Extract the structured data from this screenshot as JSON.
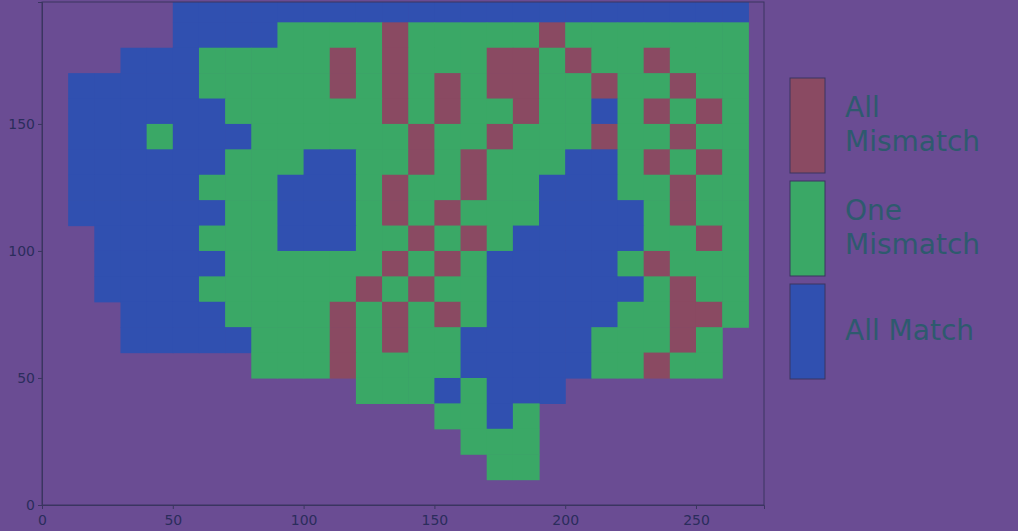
{
  "chart_data": {
    "type": "heatmap",
    "categories": [
      "All Mismatch",
      "One Mismatch",
      "All Match"
    ],
    "colors": [
      "#8a4a62",
      "#3aa866",
      "#3050b0"
    ],
    "legend": "right",
    "xlim": [
      0,
      276
    ],
    "ylim": [
      0,
      198
    ],
    "xticks": [
      0,
      50,
      100,
      150,
      200,
      250
    ],
    "yticks": [
      0,
      50,
      100,
      150
    ],
    "x": [
      5,
      15,
      25,
      35,
      45,
      55,
      65,
      75,
      85,
      95,
      105,
      115,
      125,
      135,
      145,
      155,
      165,
      175,
      185,
      195,
      205,
      215,
      225,
      235,
      245,
      255,
      265,
      275
    ],
    "y": [
      195,
      185,
      175,
      165,
      155,
      145,
      135,
      125,
      115,
      105,
      95,
      85,
      75,
      65,
      55,
      45,
      35,
      25,
      15,
      5
    ],
    "cells": [
      [
        null,
        null,
        null,
        null,
        null,
        2,
        2,
        2,
        2,
        2,
        2,
        2,
        2,
        2,
        2,
        2,
        2,
        2,
        2,
        2,
        2,
        2,
        2,
        2,
        2,
        2,
        2,
        null
      ],
      [
        null,
        null,
        null,
        null,
        null,
        2,
        2,
        2,
        2,
        1,
        1,
        1,
        1,
        0,
        1,
        1,
        1,
        1,
        1,
        0,
        1,
        1,
        1,
        1,
        1,
        1,
        1,
        null
      ],
      [
        null,
        null,
        null,
        2,
        2,
        2,
        1,
        1,
        1,
        1,
        1,
        0,
        1,
        0,
        1,
        1,
        1,
        0,
        0,
        1,
        0,
        1,
        1,
        0,
        1,
        1,
        1,
        null
      ],
      [
        null,
        2,
        2,
        2,
        2,
        2,
        1,
        1,
        1,
        1,
        1,
        0,
        1,
        0,
        1,
        0,
        1,
        0,
        0,
        1,
        1,
        0,
        1,
        1,
        0,
        1,
        1,
        null
      ],
      [
        null,
        2,
        2,
        2,
        2,
        2,
        2,
        1,
        1,
        1,
        1,
        1,
        1,
        0,
        1,
        0,
        1,
        1,
        0,
        1,
        1,
        2,
        1,
        0,
        1,
        0,
        1,
        null
      ],
      [
        null,
        2,
        2,
        2,
        1,
        2,
        2,
        2,
        1,
        1,
        1,
        1,
        1,
        1,
        0,
        1,
        1,
        0,
        1,
        1,
        1,
        0,
        1,
        1,
        0,
        1,
        1,
        null
      ],
      [
        null,
        2,
        2,
        2,
        2,
        2,
        2,
        1,
        1,
        1,
        2,
        2,
        1,
        1,
        0,
        1,
        0,
        1,
        1,
        1,
        2,
        2,
        1,
        0,
        1,
        0,
        1,
        null
      ],
      [
        null,
        2,
        2,
        2,
        2,
        2,
        1,
        1,
        1,
        2,
        2,
        2,
        1,
        0,
        1,
        1,
        0,
        1,
        1,
        2,
        2,
        2,
        1,
        1,
        0,
        1,
        1,
        null
      ],
      [
        null,
        2,
        2,
        2,
        2,
        2,
        2,
        1,
        1,
        2,
        2,
        2,
        1,
        0,
        1,
        0,
        1,
        1,
        1,
        2,
        2,
        2,
        2,
        1,
        0,
        1,
        1,
        null
      ],
      [
        null,
        null,
        2,
        2,
        2,
        2,
        1,
        1,
        1,
        2,
        2,
        2,
        1,
        1,
        0,
        1,
        0,
        1,
        2,
        2,
        2,
        2,
        2,
        1,
        1,
        0,
        1,
        null
      ],
      [
        null,
        null,
        2,
        2,
        2,
        2,
        2,
        1,
        1,
        1,
        1,
        1,
        1,
        0,
        1,
        0,
        1,
        2,
        2,
        2,
        2,
        2,
        1,
        0,
        1,
        1,
        1,
        null
      ],
      [
        null,
        null,
        2,
        2,
        2,
        2,
        1,
        1,
        1,
        1,
        1,
        1,
        0,
        1,
        0,
        1,
        1,
        2,
        2,
        2,
        2,
        2,
        2,
        1,
        0,
        1,
        1,
        null
      ],
      [
        null,
        null,
        null,
        2,
        2,
        2,
        2,
        1,
        1,
        1,
        1,
        0,
        1,
        0,
        1,
        0,
        1,
        2,
        2,
        2,
        2,
        2,
        1,
        1,
        0,
        0,
        1,
        null
      ],
      [
        null,
        null,
        null,
        2,
        2,
        2,
        2,
        2,
        1,
        1,
        1,
        0,
        1,
        0,
        1,
        1,
        2,
        2,
        2,
        2,
        2,
        1,
        1,
        1,
        0,
        1,
        null,
        null
      ],
      [
        null,
        null,
        null,
        null,
        null,
        null,
        null,
        null,
        1,
        1,
        1,
        0,
        1,
        1,
        1,
        1,
        2,
        2,
        2,
        2,
        2,
        1,
        1,
        0,
        1,
        1,
        null,
        null
      ],
      [
        null,
        null,
        null,
        null,
        null,
        null,
        null,
        null,
        null,
        null,
        null,
        null,
        1,
        1,
        1,
        2,
        1,
        2,
        2,
        2,
        null,
        null,
        null,
        null,
        null,
        null,
        null,
        null
      ],
      [
        null,
        null,
        null,
        null,
        null,
        null,
        null,
        null,
        null,
        null,
        null,
        null,
        null,
        null,
        null,
        1,
        1,
        2,
        1,
        null,
        null,
        null,
        null,
        null,
        null,
        null,
        null,
        null
      ],
      [
        null,
        null,
        null,
        null,
        null,
        null,
        null,
        null,
        null,
        null,
        null,
        null,
        null,
        null,
        null,
        null,
        1,
        1,
        1,
        null,
        null,
        null,
        null,
        null,
        null,
        null,
        null,
        null
      ],
      [
        null,
        null,
        null,
        null,
        null,
        null,
        null,
        null,
        null,
        null,
        null,
        null,
        null,
        null,
        null,
        null,
        null,
        1,
        1,
        null,
        null,
        null,
        null,
        null,
        null,
        null,
        null,
        null
      ],
      [
        null,
        null,
        null,
        null,
        null,
        null,
        null,
        null,
        null,
        null,
        null,
        null,
        null,
        null,
        null,
        null,
        null,
        null,
        null,
        null,
        null,
        null,
        null,
        null,
        null,
        null,
        null,
        null
      ]
    ]
  }
}
